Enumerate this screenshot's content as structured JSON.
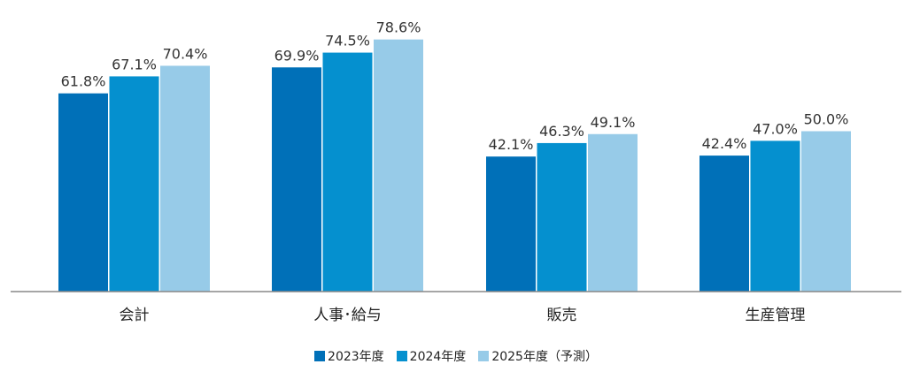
{
  "chart_data": {
    "type": "bar",
    "categories": [
      "会計",
      "人事･給与",
      "販売",
      "生産管理"
    ],
    "series": [
      {
        "name": "2023年度",
        "values": [
          61.8,
          69.9,
          42.1,
          42.4
        ],
        "labels": [
          "61.8%",
          "69.9%",
          "42.1%",
          "42.4%"
        ],
        "color": "#0070b8"
      },
      {
        "name": "2024年度",
        "values": [
          67.1,
          74.5,
          46.3,
          47.0
        ],
        "labels": [
          "67.1%",
          "74.5%",
          "46.3%",
          "47.0%"
        ],
        "color": "#0590cf"
      },
      {
        "name": "2025年度（予測）",
        "values": [
          70.4,
          78.6,
          49.1,
          50.0
        ],
        "labels": [
          "70.4%",
          "78.6%",
          "49.1%",
          "50.0%"
        ],
        "color": "#97cbe8"
      }
    ],
    "ylim": [
      0,
      80
    ],
    "grid": false,
    "legend_position": "bottom-center",
    "axis_color": "#888888",
    "label_color": "#333333"
  }
}
